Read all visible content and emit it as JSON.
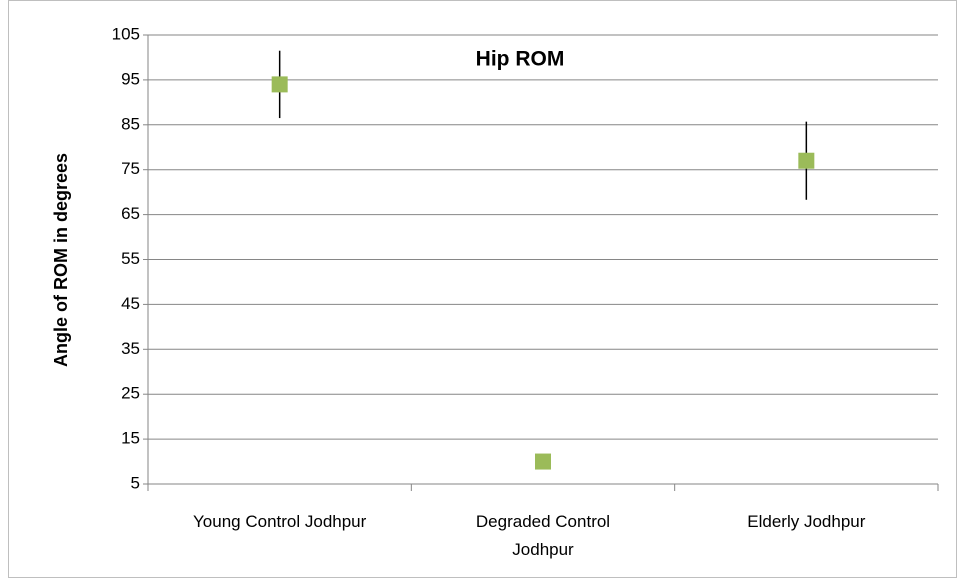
{
  "chart_data": {
    "type": "scatter",
    "title": "Hip ROM",
    "y_label": "Angle of ROM in degrees",
    "categories": [
      "Young Control Jodhpur",
      "Degraded Control Jodhpur",
      "Elderly Jodhpur"
    ],
    "values": [
      94,
      10,
      77
    ],
    "errors": [
      7.5,
      null,
      8.7
    ],
    "color": "#9bbb59",
    "error_color": "#000000",
    "ylim": [
      5,
      105
    ],
    "yticks": [
      5,
      15,
      25,
      35,
      45,
      55,
      65,
      75,
      85,
      95,
      105
    ],
    "grid": true
  }
}
